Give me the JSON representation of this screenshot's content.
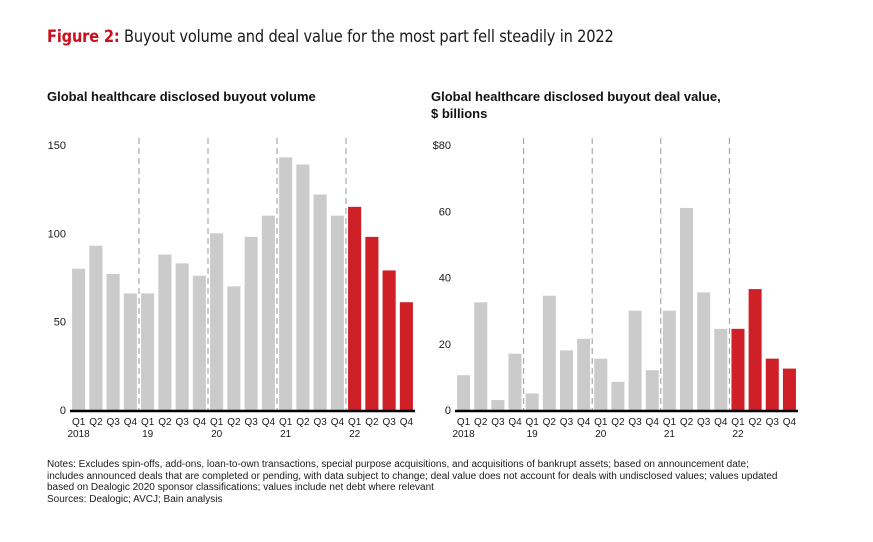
{
  "figure": {
    "lead": "Figure 2:",
    "title": " Buyout volume and deal value for the most part fell steadily in 2022",
    "accent_color": "#cc0e1e"
  },
  "colors": {
    "past_bar": "#cbcbcb",
    "highlight_bar": "#cf1f27",
    "axis": "#000000",
    "divider": "#9a9a9a"
  },
  "chart_data": [
    {
      "type": "bar",
      "title": "Global healthcare disclosed buyout volume",
      "title_lines": [
        "Global healthcare disclosed buyout volume"
      ],
      "xlabel": "",
      "ylabel": "",
      "ylim": [
        0,
        150
      ],
      "yticks": [
        0,
        50,
        100,
        150
      ],
      "ytick_labels": [
        "0",
        "50",
        "100",
        "150"
      ],
      "grid": false,
      "legend": "none",
      "categories": [
        "Q1",
        "Q2",
        "Q3",
        "Q4",
        "Q1",
        "Q2",
        "Q3",
        "Q4",
        "Q1",
        "Q2",
        "Q3",
        "Q4",
        "Q1",
        "Q2",
        "Q3",
        "Q4",
        "Q1",
        "Q2",
        "Q3",
        "Q4"
      ],
      "year_labels": [
        {
          "index": 0,
          "label": "2018"
        },
        {
          "index": 4,
          "label": "19"
        },
        {
          "index": 8,
          "label": "20"
        },
        {
          "index": 12,
          "label": "21"
        },
        {
          "index": 16,
          "label": "22"
        }
      ],
      "values": [
        80,
        93,
        77,
        66,
        66,
        88,
        83,
        76,
        100,
        70,
        98,
        110,
        143,
        139,
        122,
        110,
        115,
        98,
        79,
        61
      ],
      "highlight_from_index": 16,
      "year_dividers_after_index": [
        3,
        7,
        11,
        15
      ]
    },
    {
      "type": "bar",
      "title": "Global healthcare disclosed buyout deal value, $ billions",
      "title_lines": [
        "Global healthcare disclosed buyout deal value,",
        "$ billions"
      ],
      "xlabel": "",
      "ylabel": "",
      "ylim": [
        0,
        80
      ],
      "yticks": [
        0,
        20,
        40,
        60,
        80
      ],
      "ytick_labels": [
        "0",
        "20",
        "40",
        "60",
        "$80"
      ],
      "grid": false,
      "legend": "none",
      "categories": [
        "Q1",
        "Q2",
        "Q3",
        "Q4",
        "Q1",
        "Q2",
        "Q3",
        "Q4",
        "Q1",
        "Q2",
        "Q3",
        "Q4",
        "Q1",
        "Q2",
        "Q3",
        "Q4",
        "Q1",
        "Q2",
        "Q3",
        "Q4"
      ],
      "year_labels": [
        {
          "index": 0,
          "label": "2018"
        },
        {
          "index": 4,
          "label": "19"
        },
        {
          "index": 8,
          "label": "20"
        },
        {
          "index": 12,
          "label": "21"
        },
        {
          "index": 16,
          "label": "22"
        }
      ],
      "values": [
        10.5,
        32.5,
        3,
        17,
        5,
        34.5,
        18,
        21.5,
        15.5,
        8.5,
        30,
        12,
        30,
        61,
        35.5,
        24.5,
        24.5,
        36.5,
        15.5,
        12.5
      ],
      "highlight_from_index": 16,
      "year_dividers_after_index": [
        3,
        7,
        11,
        15
      ]
    }
  ],
  "notes": {
    "lines": [
      "Notes: Excludes spin-offs, add-ons, loan-to-own transactions, special purpose acquisitions, and acquisitions of bankrupt assets; based on announcement date;",
      "includes announced deals that are completed or pending, with data subject to change; deal value does not account for deals with undisclosed values; values updated",
      "based on Dealogic 2020 sponsor classifications; values include net debt where relevant",
      "Sources: Dealogic; AVCJ; Bain analysis"
    ]
  }
}
